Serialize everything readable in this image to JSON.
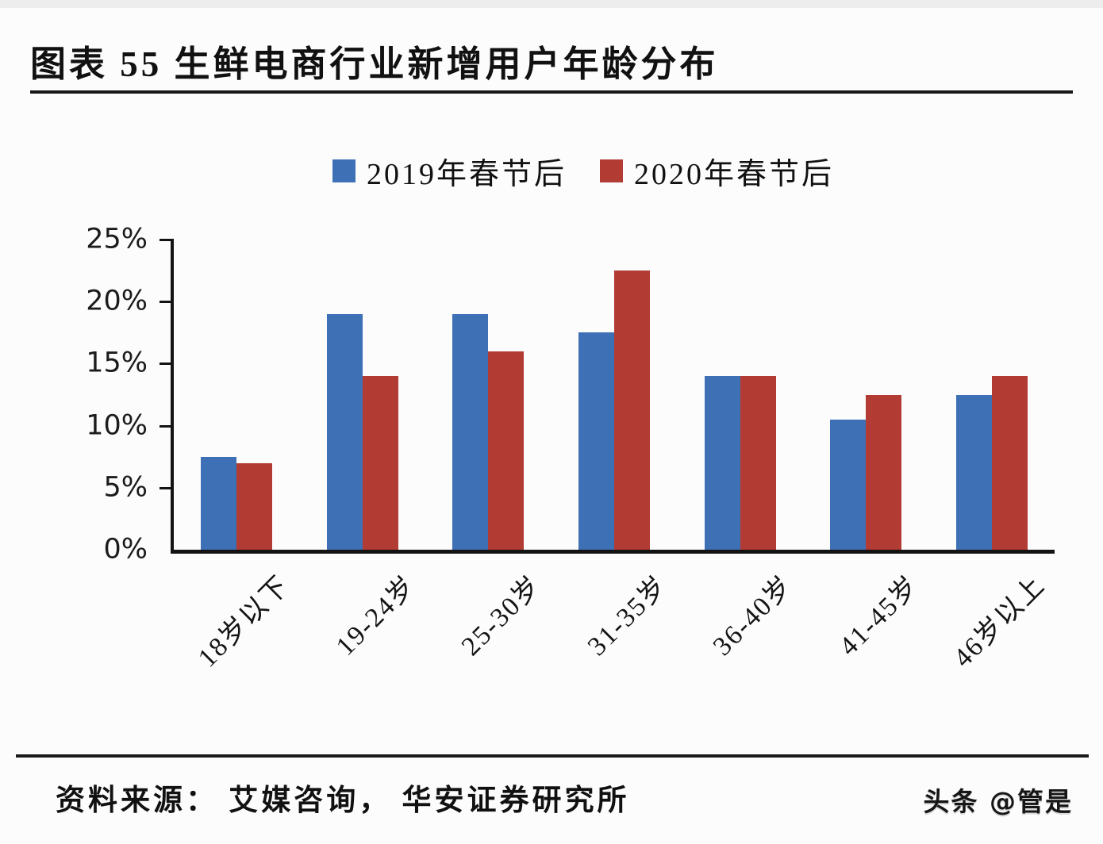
{
  "header": {
    "title": "图表 55  生鲜电商行业新增用户年龄分布"
  },
  "chart_data": {
    "type": "bar",
    "title": "生鲜电商行业新增用户年龄分布",
    "units": "%",
    "categories": [
      "18岁以下",
      "19-24岁",
      "25-30岁",
      "31-35岁",
      "36-40岁",
      "41-45岁",
      "46岁以上"
    ],
    "series": [
      {
        "name": "2019年春节后",
        "color": "#3E70B6",
        "values": [
          7.5,
          19,
          19,
          17.5,
          14,
          10.5,
          12.5
        ]
      },
      {
        "name": "2020年春节后",
        "color": "#B23B33",
        "values": [
          7,
          14,
          16,
          22.5,
          14,
          12.5,
          14
        ]
      }
    ],
    "xlabel": "",
    "ylabel": "",
    "ylim": [
      0,
      25
    ],
    "ytick_values": [
      0,
      5,
      10,
      15,
      20,
      25
    ],
    "ytick_labels": [
      "0%",
      "5%",
      "10%",
      "15%",
      "20%",
      "25%"
    ],
    "grid": false,
    "legend_position": "top-center"
  },
  "footer": {
    "source": "资料来源： 艾媒咨询， 华安证券研究所",
    "watermark": "头条 @管是"
  },
  "colors": {
    "series_2019": "#3E70B6",
    "series_2020": "#B23B33",
    "axis": "#131313",
    "background": "#fcfcfd"
  }
}
